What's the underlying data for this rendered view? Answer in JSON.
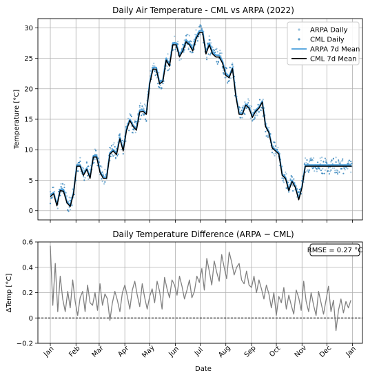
{
  "figure": {
    "xlabel": "Date"
  },
  "colors": {
    "arpa": "#1f77b4",
    "arpa_line": "#4a9fdc",
    "cml": "#000000",
    "diff": "#808080",
    "zero": "#000000",
    "grid": "#b0b0b0"
  },
  "chart_data": [
    {
      "type": "line",
      "title": "Daily Air Temperature - CML vs ARPA (2022)",
      "xlabel": "",
      "ylabel": "Temperature [°C]",
      "ylim": [
        -1.5,
        31.5
      ],
      "yticks": [
        0,
        5,
        10,
        15,
        20,
        25,
        30
      ],
      "grid": true,
      "legend_position": "top-right",
      "x_unit": "day of year 2022",
      "legend": [
        {
          "label": "ARPA Daily",
          "kind": "dot",
          "color": "#1f77b4",
          "alpha": 0.45
        },
        {
          "label": "CML Daily",
          "kind": "dot",
          "color": "#1f77b4",
          "alpha": 0.75
        },
        {
          "label": "ARPA 7d Mean",
          "kind": "line",
          "color": "#4a9fdc"
        },
        {
          "label": "CML 7d Mean",
          "kind": "line",
          "color": "#000000"
        }
      ],
      "series": [
        {
          "name": "ARPA 7d Mean",
          "kind": "line",
          "x": [
            1,
            5,
            9,
            13,
            17,
            21,
            25,
            29,
            33,
            37,
            41,
            45,
            49,
            53,
            57,
            61,
            65,
            69,
            73,
            77,
            81,
            85,
            89,
            93,
            97,
            101,
            105,
            109,
            113,
            117,
            121,
            125,
            129,
            133,
            137,
            141,
            145,
            149,
            153,
            157,
            161,
            165,
            169,
            173,
            177,
            181,
            185,
            189,
            193,
            197,
            201,
            205,
            209,
            213,
            217,
            221,
            225,
            229,
            233,
            237,
            241,
            245,
            249,
            253,
            257,
            261,
            265,
            269,
            273,
            277,
            281,
            285,
            289,
            293,
            297,
            301,
            305,
            309,
            313,
            317,
            321,
            325,
            329,
            333,
            337,
            341,
            345,
            349,
            353,
            357,
            361,
            365
          ],
          "values": [
            2.5,
            3.0,
            1.0,
            3.5,
            3.5,
            1.5,
            0.9,
            3.0,
            7.5,
            7.5,
            6.0,
            7.0,
            5.5,
            9.0,
            9.0,
            6.5,
            5.5,
            5.5,
            9.5,
            10.0,
            9.5,
            12.0,
            10.0,
            13.5,
            15.0,
            14.0,
            13.5,
            16.5,
            16.5,
            16.0,
            21.0,
            23.5,
            23.5,
            21.0,
            21.5,
            25.0,
            24.0,
            27.5,
            27.5,
            25.5,
            26.5,
            28.0,
            27.5,
            26.5,
            28.5,
            29.5,
            29.5,
            26.0,
            27.5,
            26.0,
            25.5,
            25.5,
            24.5,
            22.5,
            22.0,
            23.5,
            19.0,
            16.0,
            16.0,
            17.5,
            17.0,
            15.5,
            16.5,
            17.0,
            18.0,
            14.0,
            13.0,
            10.5,
            10.0,
            9.5,
            6.0,
            5.5,
            3.5,
            5.0,
            4.0,
            2.0,
            4.0,
            7.5,
            7.5,
            7.5,
            7.5,
            7.5,
            7.5,
            7.5,
            7.5,
            7.5,
            7.5,
            7.5,
            7.5,
            7.5,
            7.5,
            7.5
          ]
        },
        {
          "name": "CML 7d Mean",
          "kind": "line",
          "x": [
            1,
            5,
            9,
            13,
            17,
            21,
            25,
            29,
            33,
            37,
            41,
            45,
            49,
            53,
            57,
            61,
            65,
            69,
            73,
            77,
            81,
            85,
            89,
            93,
            97,
            101,
            105,
            109,
            113,
            117,
            121,
            125,
            129,
            133,
            137,
            141,
            145,
            149,
            153,
            157,
            161,
            165,
            169,
            173,
            177,
            181,
            185,
            189,
            193,
            197,
            201,
            205,
            209,
            213,
            217,
            221,
            225,
            229,
            233,
            237,
            241,
            245,
            249,
            253,
            257,
            261,
            265,
            269,
            273,
            277,
            281,
            285,
            289,
            293,
            297,
            301,
            305,
            309,
            313,
            317,
            321,
            325,
            329,
            333,
            337,
            341,
            345,
            349,
            353,
            357,
            361,
            365
          ],
          "values": [
            2.3,
            2.8,
            0.8,
            3.3,
            3.2,
            1.3,
            0.7,
            2.8,
            7.3,
            7.3,
            5.8,
            6.8,
            5.3,
            8.8,
            8.8,
            6.3,
            5.3,
            5.3,
            9.3,
            9.8,
            9.2,
            11.8,
            9.8,
            13.2,
            14.8,
            13.8,
            13.2,
            16.2,
            16.3,
            15.8,
            20.8,
            23.2,
            23.2,
            20.8,
            21.2,
            24.7,
            23.7,
            27.2,
            27.2,
            25.2,
            26.2,
            27.7,
            27.2,
            26.2,
            28.2,
            29.2,
            29.2,
            25.7,
            27.2,
            25.7,
            25.2,
            25.2,
            24.2,
            22.2,
            21.8,
            23.3,
            18.8,
            15.8,
            15.8,
            17.3,
            16.8,
            15.3,
            16.3,
            16.8,
            17.8,
            13.8,
            12.8,
            10.3,
            9.8,
            9.3,
            5.8,
            5.3,
            3.3,
            4.8,
            3.8,
            1.8,
            3.8,
            7.3,
            7.3,
            7.3,
            7.3,
            7.3,
            7.3,
            7.3,
            7.3,
            7.3,
            7.3,
            7.3,
            7.3,
            7.3,
            7.3,
            7.3
          ]
        }
      ]
    },
    {
      "type": "line",
      "title": "Daily Temperature Difference (ARPA − CML)",
      "xlabel": "Date",
      "ylabel": "ΔTemp [°C]",
      "ylim": [
        -0.2,
        0.6
      ],
      "yticks": [
        -0.2,
        0.0,
        0.2,
        0.4,
        0.6
      ],
      "grid": true,
      "annotation": "RMSE = 0.27 °C",
      "annotation_position": "top-right",
      "reference_line": 0.0,
      "xlim_days": [
        -14,
        378
      ],
      "month_ticks": [
        {
          "label": "Jan",
          "day": 1
        },
        {
          "label": "Feb",
          "day": 32
        },
        {
          "label": "Mar",
          "day": 60
        },
        {
          "label": "Apr",
          "day": 91
        },
        {
          "label": "May",
          "day": 121
        },
        {
          "label": "Jun",
          "day": 152
        },
        {
          "label": "Jul",
          "day": 182
        },
        {
          "label": "Aug",
          "day": 213
        },
        {
          "label": "Sep",
          "day": 244
        },
        {
          "label": "Oct",
          "day": 274
        },
        {
          "label": "Nov",
          "day": 305
        },
        {
          "label": "Dec",
          "day": 335
        },
        {
          "label": "Jan",
          "day": 366
        }
      ],
      "series": [
        {
          "kind": "line",
          "x": [
            1,
            4,
            7,
            10,
            13,
            16,
            19,
            22,
            25,
            28,
            31,
            34,
            37,
            40,
            43,
            46,
            49,
            52,
            55,
            58,
            61,
            64,
            67,
            70,
            73,
            76,
            79,
            82,
            85,
            88,
            91,
            94,
            97,
            100,
            103,
            106,
            109,
            112,
            115,
            118,
            121,
            124,
            127,
            130,
            133,
            136,
            139,
            142,
            145,
            148,
            151,
            154,
            157,
            160,
            163,
            166,
            169,
            172,
            175,
            178,
            181,
            184,
            187,
            190,
            193,
            196,
            199,
            202,
            205,
            208,
            211,
            214,
            217,
            220,
            223,
            226,
            229,
            232,
            235,
            238,
            241,
            244,
            247,
            250,
            253,
            256,
            259,
            262,
            265,
            268,
            271,
            274,
            277,
            280,
            283,
            286,
            289,
            292,
            295,
            298,
            301,
            304,
            307,
            310,
            313,
            316,
            319,
            322,
            325,
            328,
            331,
            334,
            337,
            340,
            343,
            346,
            349,
            352,
            355,
            358,
            361,
            364
          ],
          "values": [
            0.57,
            0.1,
            0.43,
            0.05,
            0.33,
            0.15,
            0.05,
            0.21,
            0.08,
            0.3,
            0.13,
            0.02,
            0.16,
            0.21,
            0.05,
            0.26,
            0.12,
            0.1,
            0.2,
            0.06,
            0.27,
            0.1,
            0.19,
            0.15,
            -0.02,
            0.12,
            0.21,
            0.14,
            0.05,
            0.2,
            0.26,
            0.17,
            0.07,
            0.22,
            0.29,
            0.18,
            0.09,
            0.27,
            0.16,
            0.07,
            0.17,
            0.23,
            0.12,
            0.29,
            0.21,
            0.07,
            0.32,
            0.23,
            0.16,
            0.3,
            0.26,
            0.18,
            0.33,
            0.25,
            0.15,
            0.22,
            0.3,
            0.16,
            0.21,
            0.33,
            0.28,
            0.39,
            0.22,
            0.47,
            0.37,
            0.26,
            0.45,
            0.36,
            0.29,
            0.5,
            0.4,
            0.31,
            0.52,
            0.44,
            0.34,
            0.4,
            0.43,
            0.3,
            0.27,
            0.37,
            0.26,
            0.24,
            0.33,
            0.2,
            0.3,
            0.23,
            0.15,
            0.26,
            0.19,
            0.08,
            0.2,
            0.02,
            0.17,
            0.12,
            0.24,
            0.07,
            0.18,
            0.1,
            0.03,
            0.22,
            0.16,
            0.06,
            0.29,
            0.13,
            0.05,
            0.2,
            0.1,
            0.02,
            0.21,
            0.12,
            0.03,
            0.14,
            0.25,
            0.05,
            0.14,
            -0.1,
            0.06,
            0.15,
            0.04,
            0.13,
            0.08,
            0.14
          ]
        }
      ]
    }
  ]
}
